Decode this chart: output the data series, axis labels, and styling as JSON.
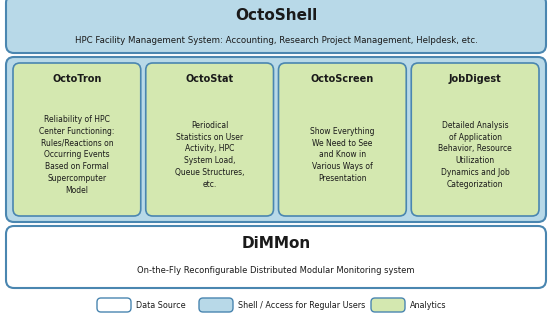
{
  "octoshell_title": "OctoShell",
  "octoshell_sub": "HPC Facility Management System: Accounting, Research Project Management, Helpdesk, etc.",
  "octoshell_bg": "#b8d9e8",
  "octoshell_border": "#4a86b0",
  "dimmon_title": "DiMMon",
  "dimmon_bg": "#ffffff",
  "dimmon_border": "#4a86b0",
  "dimmon_sub": "On-the-Fly Reconfigurable Distributed Modular Monitoring system",
  "modules": [
    {
      "title": "OctoTron",
      "body": "Reliability of HPC\nCenter Functioning:\nRules/Reactions on\nOccurring Events\nBased on Formal\nSupercomputer\nModel"
    },
    {
      "title": "OctoStat",
      "body": "Periodical\nStatistics on User\nActivity, HPC\nSystem Load,\nQueue Structures,\netc."
    },
    {
      "title": "OctoScreen",
      "body": "Show Everything\nWe Need to See\nand Know in\nVarious Ways of\nPresentation"
    },
    {
      "title": "JobDigest",
      "body": "Detailed Analysis\nof Application\nBehavior, Resource\nUtilization\nDynamics and Job\nCategorization"
    }
  ],
  "modules_bg": "#d4e8b0",
  "modules_border": "#4a86b0",
  "outer_bg": "#b8d9e8",
  "outer_border": "#4a86b0",
  "legend_items": [
    {
      "label": "Data Source",
      "color": "#ffffff"
    },
    {
      "label": "Shell / Access for Regular Users",
      "color": "#b8d9e8"
    },
    {
      "label": "Analytics",
      "color": "#d4e8b0"
    }
  ],
  "legend_border": "#4a86b0",
  "bg_color": "#ffffff",
  "text_color": "#1a1a1a",
  "figw": 5.52,
  "figh": 3.22,
  "dpi": 100
}
